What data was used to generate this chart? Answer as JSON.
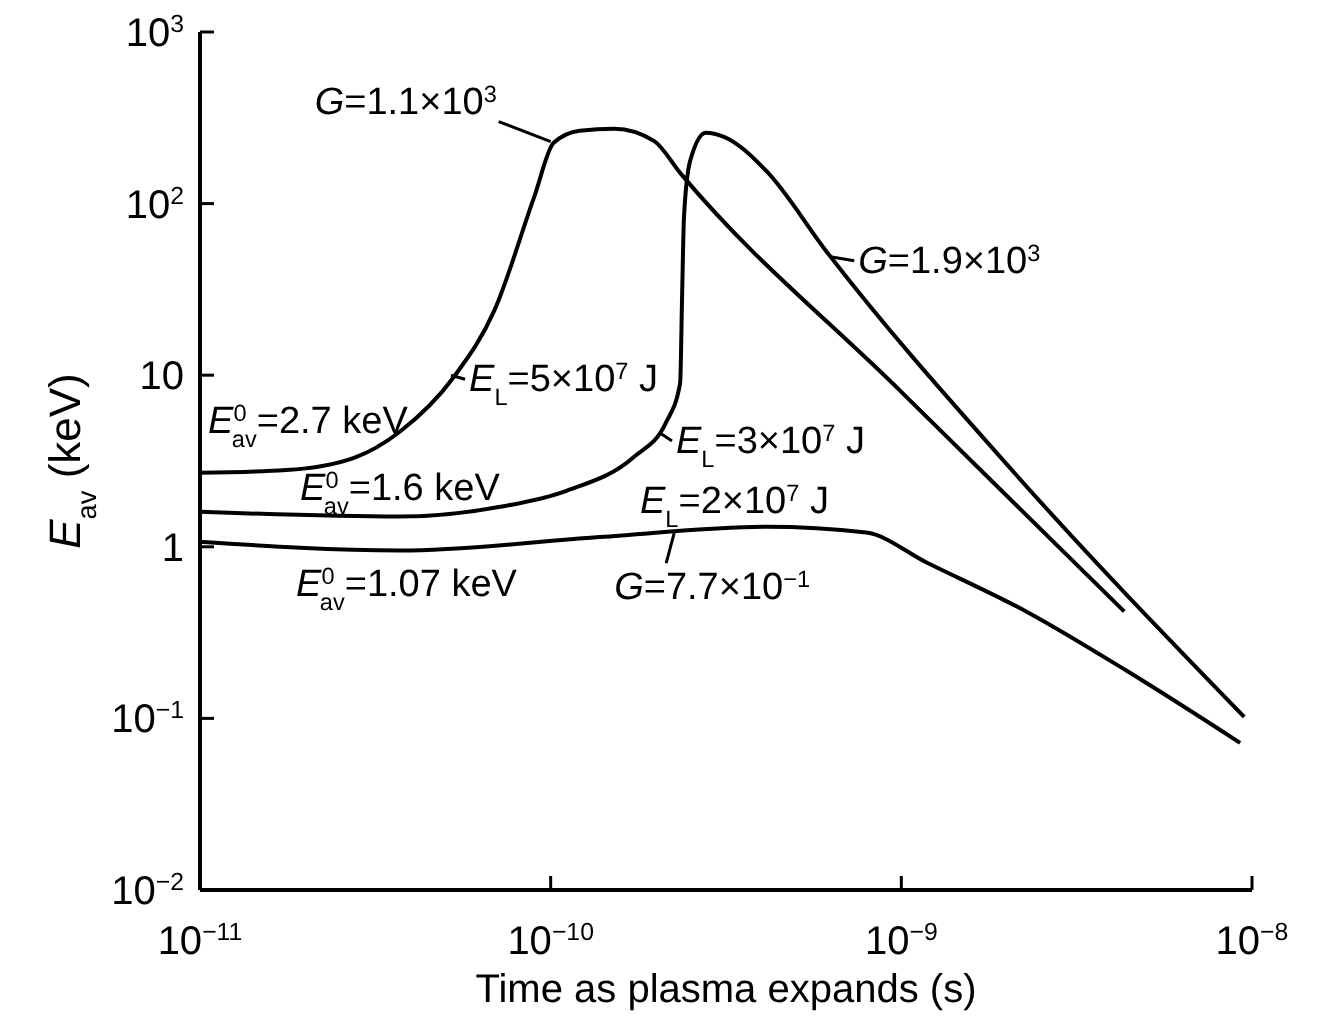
{
  "chart_data": {
    "type": "line",
    "xlabel": "Time as plasma expands (s)",
    "ylabel": "E$_{av}$ (keV)",
    "log": "xy",
    "xlim": [
      1e-11,
      1e-08
    ],
    "ylim": [
      0.01,
      1000
    ],
    "xticks": [
      {
        "value": 1e-11,
        "label": "10$^{−11}$"
      },
      {
        "value": 1e-10,
        "label": "10$^{−10}$"
      },
      {
        "value": 1e-09,
        "label": "10$^{−9}$"
      },
      {
        "value": 1e-08,
        "label": "10$^{−8}$"
      }
    ],
    "yticks": [
      {
        "value": 0.01,
        "label": "10$^{−2}$"
      },
      {
        "value": 0.1,
        "label": "10$^{−1}$"
      },
      1,
      10,
      {
        "value": 100,
        "label": "10$^{2}$"
      },
      {
        "value": 1000,
        "label": "10$^{3}$"
      }
    ],
    "series": [
      {
        "color": "#000000",
        "x": [
          1e-11,
          1.76e-11,
          2.75e-11,
          3.72e-11,
          5.3e-11,
          6.9e-11,
          8.97e-11,
          1.02e-10,
          1.21e-10,
          1.52e-10,
          1.97e-10,
          2.34e-10,
          9.93e-10,
          4.32e-09
        ],
        "values": [
          2.7,
          2.8,
          3.3,
          4.7,
          9.8,
          23.7,
          109,
          226,
          266,
          273,
          232,
          151,
          8.1,
          0.42
        ]
      },
      {
        "color": "#000000",
        "x": [
          1e-11,
          3.72e-11,
          7.18e-11,
          1.11e-10,
          1.73e-10,
          2.13e-10,
          2.34e-10,
          2.37e-10,
          2.4e-10,
          2.5e-10,
          2.77e-10,
          3.12e-10,
          4.12e-10,
          6.1e-10,
          2.1e-09,
          9.5e-09
        ],
        "values": [
          1.6,
          1.5,
          1.71,
          2.12,
          3.35,
          5.28,
          9.0,
          28.6,
          83.8,
          178,
          259,
          245,
          155,
          53,
          2.7,
          0.102
        ]
      },
      {
        "color": "#000000",
        "x": [
          1e-11,
          3.72e-11,
          1.38e-10,
          4.12e-10,
          7.94e-10,
          1.18e-09,
          2.27e-09,
          4.38e-09,
          9.25e-09
        ],
        "values": [
          1.07,
          0.95,
          1.14,
          1.31,
          1.21,
          0.81,
          0.42,
          0.19,
          0.072
        ]
      }
    ],
    "annotations": [
      {
        "text": "G=1.1×10$^{3}$",
        "x": 1e-10,
        "y": 230
      },
      {
        "text": "G=1.9×10$^{3}$",
        "x": 6.27e-10,
        "y": 49
      },
      {
        "text": "E$_{L}$=5×10$^{7}$ J",
        "x": 5.2e-11,
        "y": 10
      },
      {
        "text": "E$^{0}$$_{av}$=2.7 keV",
        "x": 1e-11,
        "y": 2.7
      },
      {
        "text": "E$_{L}$=3×10$^{7}$ J",
        "x": 2.05e-10,
        "y": 4.6
      },
      {
        "text": "E$^{0}$$_{av}$=1.6 keV",
        "x": 1e-11,
        "y": 1.6
      },
      {
        "text": "E$_{L}$=2×10$^{7}$ J",
        "x": 3.04e-10,
        "y": 1.27
      },
      {
        "text": "G=7.7×10$^{−1}$",
        "x": 2.25e-10,
        "y": 1.2
      },
      {
        "text": "E$^{0}$$_{av}$=1.07 keV",
        "x": 1e-11,
        "y": 1.07
      }
    ]
  }
}
